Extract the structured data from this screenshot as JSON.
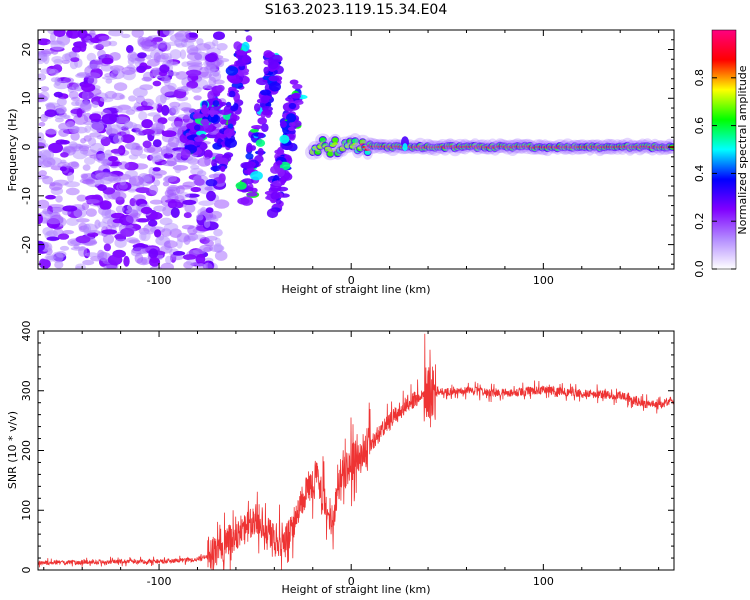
{
  "page_title": "S163.2023.119.15.34.E04",
  "chart_data": [
    {
      "type": "heatmap",
      "xlabel": "Height of straight line (km)",
      "ylabel": "Frequency (Hz)",
      "xlim": [
        -163,
        168
      ],
      "ylim": [
        -25,
        24
      ],
      "x_ticks": [
        -100,
        0,
        100
      ],
      "y_ticks": [
        -20,
        -10,
        0,
        10,
        20
      ],
      "colorbar": {
        "label": "Normalized spectral amplitude",
        "range": [
          0,
          1
        ],
        "ticks": [
          0.0,
          0.2,
          0.4,
          0.6,
          0.8
        ],
        "tick_labels": [
          "0.0",
          "0.2",
          "0.4",
          "0.6",
          "0.8"
        ],
        "stops": [
          "#ffffff",
          "#b38cff",
          "#8000ff",
          "#0000ff",
          "#00ffff",
          "#00ff00",
          "#ffff00",
          "#ff0000",
          "#ff0080"
        ]
      },
      "features": {
        "noise_region_x": [
          -163,
          -75
        ],
        "scatter_band_x": [
          -75,
          -20
        ],
        "steady_line_x": [
          -20,
          168
        ],
        "steady_line_frequency": 0
      }
    },
    {
      "type": "line",
      "xlabel": "Height of straight line (km)",
      "ylabel": "SNR (10 * v/v)",
      "xlim": [
        -163,
        168
      ],
      "ylim": [
        0,
        400
      ],
      "x_ticks": [
        -100,
        0,
        100
      ],
      "y_ticks": [
        0,
        100,
        200,
        300,
        400
      ],
      "color": "#ee3333",
      "series": [
        {
          "x": [
            -163,
            -140,
            -120,
            -100,
            -80,
            -70,
            -62,
            -55,
            -48,
            -42,
            -35,
            -28,
            -22,
            -18,
            -14,
            -10,
            -5,
            0,
            5,
            10,
            15,
            20,
            25,
            30,
            35,
            40,
            42,
            45,
            50,
            60,
            70,
            80,
            90,
            100,
            110,
            120,
            130,
            140,
            150,
            160,
            168
          ],
          "y": [
            12,
            13,
            14,
            14,
            18,
            30,
            55,
            70,
            85,
            60,
            40,
            95,
            140,
            155,
            110,
            85,
            165,
            180,
            195,
            210,
            230,
            248,
            265,
            280,
            290,
            295,
            290,
            300,
            298,
            300,
            298,
            296,
            299,
            302,
            298,
            296,
            294,
            292,
            280,
            275,
            285
          ]
        }
      ]
    }
  ]
}
